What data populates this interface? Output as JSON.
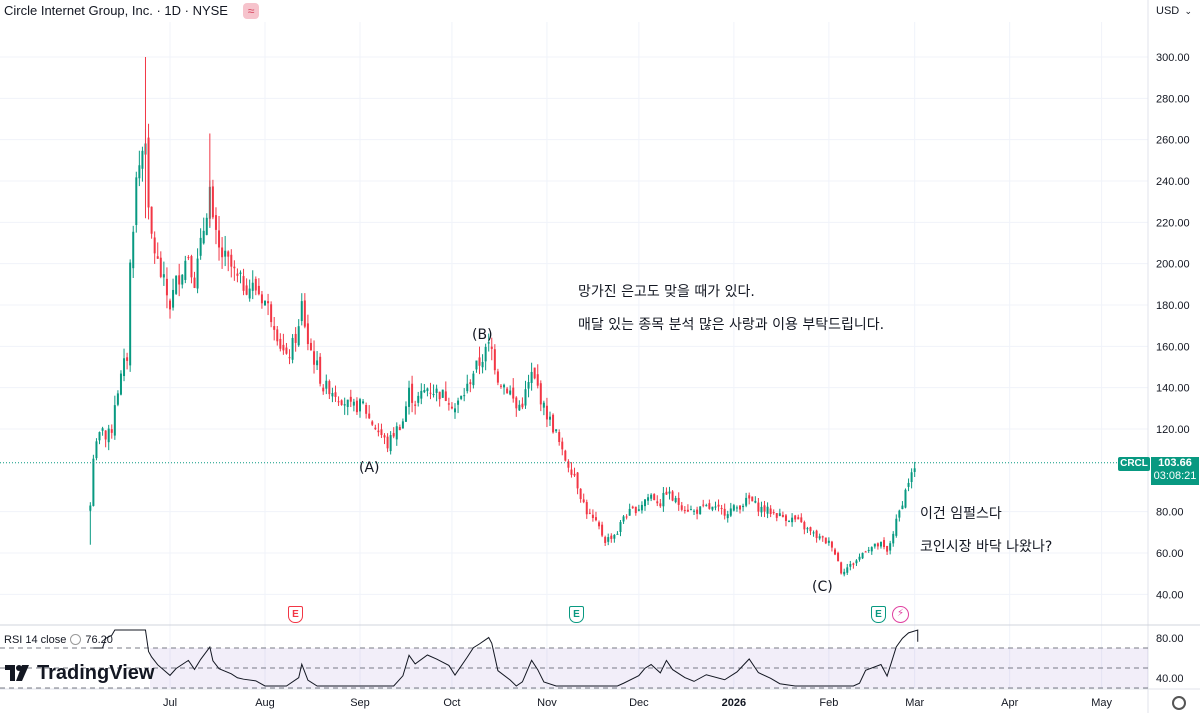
{
  "header": {
    "symbol_title": "Circle Internet Group, Inc. · 1D · NYSE",
    "badge_icon": "wave-approx-icon",
    "badge_glyph": "≈",
    "currency": "USD",
    "currency_chevron": "⌄"
  },
  "colors": {
    "up": "#089981",
    "down": "#f23645",
    "grid": "#f0f3fa",
    "rsi_fill": "#7e57c2",
    "annotation_text": "#131722"
  },
  "annotations": {
    "line1": "망가진 은고도 맞을 때가 있다.",
    "line2": "매달 있는 종목 분석 많은 사랑과 이용 부탁드립니다.",
    "line3": "이건 임펄스다",
    "line4": "코인시장 바닥 나왔나?"
  },
  "wave_labels": {
    "a": "(A)",
    "b": "(B)",
    "c": "(C)"
  },
  "last_price": {
    "ticker": "CRCL",
    "price": "103.66",
    "countdown": "03:08:21"
  },
  "rsi": {
    "label": "RSI 14 close",
    "value": "76.20",
    "ticks": [
      "80.00",
      "40.00"
    ]
  },
  "earnings_markers": [
    "E",
    "E",
    "E"
  ],
  "logo_text": "TradingView",
  "chart_data": {
    "type": "candlestick",
    "title": "Circle Internet Group, Inc. · 1D · NYSE",
    "y_axis": {
      "ticks": [
        "300.00",
        "280.00",
        "260.00",
        "240.00",
        "220.00",
        "200.00",
        "180.00",
        "160.00",
        "140.00",
        "120.00",
        "80.00",
        "60.00",
        "40.00"
      ],
      "ylim": [
        35,
        310
      ],
      "currency": "USD",
      "side": "right"
    },
    "x_axis": {
      "ticks": [
        "Jul",
        "Aug",
        "Sep",
        "Oct",
        "Nov",
        "Dec",
        "2026",
        "Feb",
        "Mar",
        "Apr",
        "May"
      ],
      "dates": [
        "2025-07-01",
        "2025-08-01",
        "2025-09-01",
        "2025-10-01",
        "2025-11-01",
        "2025-12-01",
        "2026-01-01",
        "2026-02-01",
        "2026-03-01",
        "2026-04-01",
        "2026-05-01"
      ]
    },
    "grid": true,
    "last_price_line": 103.66,
    "close_path": [
      [
        "2025-06-05",
        83
      ],
      [
        "2025-06-06",
        107
      ],
      [
        "2025-06-09",
        122
      ],
      [
        "2025-06-10",
        115
      ],
      [
        "2025-06-12",
        120
      ],
      [
        "2025-06-13",
        133
      ],
      [
        "2025-06-16",
        151
      ],
      [
        "2025-06-17",
        155
      ],
      [
        "2025-06-18",
        199
      ],
      [
        "2025-06-20",
        240
      ],
      [
        "2025-06-23",
        263
      ],
      [
        "2025-06-24",
        222
      ],
      [
        "2025-06-25",
        213
      ],
      [
        "2025-06-27",
        200
      ],
      [
        "2025-07-01",
        180
      ],
      [
        "2025-07-03",
        191
      ],
      [
        "2025-07-07",
        205
      ],
      [
        "2025-07-09",
        192
      ],
      [
        "2025-07-11",
        208
      ],
      [
        "2025-07-14",
        236
      ],
      [
        "2025-07-15",
        218
      ],
      [
        "2025-07-17",
        206
      ],
      [
        "2025-07-21",
        198
      ],
      [
        "2025-07-23",
        192
      ],
      [
        "2025-07-25",
        190
      ],
      [
        "2025-07-29",
        188
      ],
      [
        "2025-08-01",
        182
      ],
      [
        "2025-08-04",
        172
      ],
      [
        "2025-08-06",
        161
      ],
      [
        "2025-08-08",
        153
      ],
      [
        "2025-08-12",
        168
      ],
      [
        "2025-08-13",
        180
      ],
      [
        "2025-08-15",
        162
      ],
      [
        "2025-08-18",
        150
      ],
      [
        "2025-08-20",
        140
      ],
      [
        "2025-08-22",
        140
      ],
      [
        "2025-08-26",
        135
      ],
      [
        "2025-08-29",
        130
      ],
      [
        "2025-09-02",
        132
      ],
      [
        "2025-09-04",
        125
      ],
      [
        "2025-09-08",
        117
      ],
      [
        "2025-09-10",
        112
      ],
      [
        "2025-09-12",
        118
      ],
      [
        "2025-09-15",
        124
      ],
      [
        "2025-09-17",
        138
      ],
      [
        "2025-09-19",
        133
      ],
      [
        "2025-09-23",
        140
      ],
      [
        "2025-09-26",
        138
      ],
      [
        "2025-09-30",
        135
      ],
      [
        "2025-10-02",
        130
      ],
      [
        "2025-10-06",
        140
      ],
      [
        "2025-10-08",
        148
      ],
      [
        "2025-10-10",
        152
      ],
      [
        "2025-10-13",
        160
      ],
      [
        "2025-10-14",
        158
      ],
      [
        "2025-10-16",
        145
      ],
      [
        "2025-10-20",
        138
      ],
      [
        "2025-10-22",
        130
      ],
      [
        "2025-10-24",
        133
      ],
      [
        "2025-10-27",
        146
      ],
      [
        "2025-10-29",
        140
      ],
      [
        "2025-10-31",
        130
      ],
      [
        "2025-11-04",
        118
      ],
      [
        "2025-11-06",
        108
      ],
      [
        "2025-11-10",
        98
      ],
      [
        "2025-11-12",
        88
      ],
      [
        "2025-11-14",
        80
      ],
      [
        "2025-11-18",
        72
      ],
      [
        "2025-11-20",
        66
      ],
      [
        "2025-11-24",
        70
      ],
      [
        "2025-11-26",
        78
      ],
      [
        "2025-12-01",
        82
      ],
      [
        "2025-12-03",
        86
      ],
      [
        "2025-12-05",
        88
      ],
      [
        "2025-12-08",
        84
      ],
      [
        "2025-12-10",
        90
      ],
      [
        "2025-12-12",
        86
      ],
      [
        "2025-12-16",
        82
      ],
      [
        "2025-12-19",
        80
      ],
      [
        "2025-12-23",
        82
      ],
      [
        "2025-12-29",
        80
      ],
      [
        "2026-01-02",
        82
      ],
      [
        "2026-01-06",
        86
      ],
      [
        "2026-01-09",
        82
      ],
      [
        "2026-01-13",
        80
      ],
      [
        "2026-01-16",
        78
      ],
      [
        "2026-01-21",
        76
      ],
      [
        "2026-01-26",
        70
      ],
      [
        "2026-01-28",
        68
      ],
      [
        "2026-02-02",
        64
      ],
      [
        "2026-02-04",
        56
      ],
      [
        "2026-02-05",
        51
      ],
      [
        "2026-02-09",
        55
      ],
      [
        "2026-02-11",
        58
      ],
      [
        "2026-02-13",
        62
      ],
      [
        "2026-02-18",
        64
      ],
      [
        "2026-02-20",
        60
      ],
      [
        "2026-02-23",
        75
      ],
      [
        "2026-02-25",
        85
      ],
      [
        "2026-02-27",
        95
      ],
      [
        "2026-03-02",
        103.66
      ]
    ],
    "annotated_points": [
      {
        "label": "(A)",
        "date": "2025-09-10",
        "value": 112
      },
      {
        "label": "(B)",
        "date": "2025-10-13",
        "value": 160
      },
      {
        "label": "(C)",
        "date": "2026-02-05",
        "value": 51
      }
    ],
    "indicator": {
      "name": "RSI 14 close",
      "value": 76.2,
      "levels": [
        70,
        50,
        30
      ],
      "axis_ticks": [
        "80.00",
        "40.00"
      ]
    }
  }
}
